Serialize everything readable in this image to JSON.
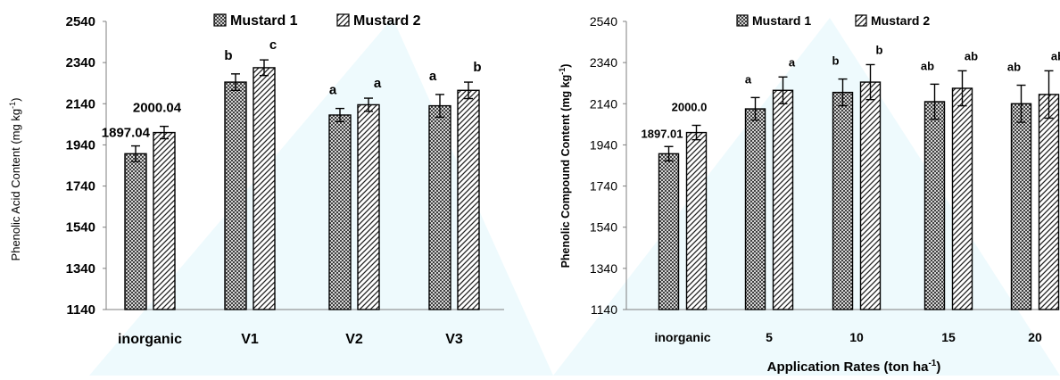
{
  "chart_data": [
    {
      "type": "bar",
      "title": "",
      "xlabel": "",
      "ylabel": "Phenolic Acid Content (mg kg",
      "ylabel_sup": "-1",
      "ylabel_suffix": ")",
      "ylim": [
        1140,
        2540
      ],
      "yticks": [
        "1140",
        "1340",
        "1540",
        "1740",
        "1940",
        "2140",
        "2340",
        "2540"
      ],
      "grid": false,
      "legend_position": "top",
      "categories": [
        "inorganic",
        "V1",
        "V2",
        "V3"
      ],
      "series": [
        {
          "name": "Mustard 1",
          "pattern": "crosshatch",
          "values": [
            1897.04,
            2245,
            2085,
            2130
          ],
          "errors": [
            38,
            40,
            32,
            55
          ],
          "labels": [
            "1897.04",
            "b",
            "a",
            "a"
          ]
        },
        {
          "name": "Mustard 2",
          "pattern": "diagonal",
          "values": [
            2000.04,
            2315,
            2135,
            2205
          ],
          "errors": [
            30,
            38,
            32,
            40
          ],
          "labels": [
            "2000.04",
            "c",
            "a",
            "b"
          ]
        }
      ]
    },
    {
      "type": "bar",
      "title": "",
      "xlabel": "Application Rates (ton ha",
      "xlabel_sup": "-1",
      "xlabel_suffix": ")",
      "ylabel": "Phenolic Compound Content (mg kg",
      "ylabel_sup": "-1",
      "ylabel_suffix": ")",
      "ylim": [
        1140,
        2540
      ],
      "yticks": [
        "1140",
        "1340",
        "1540",
        "1740",
        "1940",
        "2140",
        "2340",
        "2540"
      ],
      "grid": false,
      "legend_position": "top",
      "categories": [
        "inorganic",
        "5",
        "10",
        "15",
        "20"
      ],
      "series": [
        {
          "name": "Mustard 1",
          "pattern": "crosshatch",
          "values": [
            1897.01,
            2115,
            2195,
            2150,
            2140
          ],
          "errors": [
            35,
            55,
            65,
            85,
            90
          ],
          "labels": [
            "1897.01",
            "a",
            "b",
            "ab",
            "ab"
          ]
        },
        {
          "name": "Mustard 2",
          "pattern": "diagonal",
          "values": [
            2000.0,
            2205,
            2245,
            2215,
            2185
          ],
          "errors": [
            35,
            65,
            85,
            85,
            115
          ],
          "labels": [
            "2000.0",
            "a",
            "b",
            "ab",
            "ab"
          ]
        }
      ]
    }
  ]
}
